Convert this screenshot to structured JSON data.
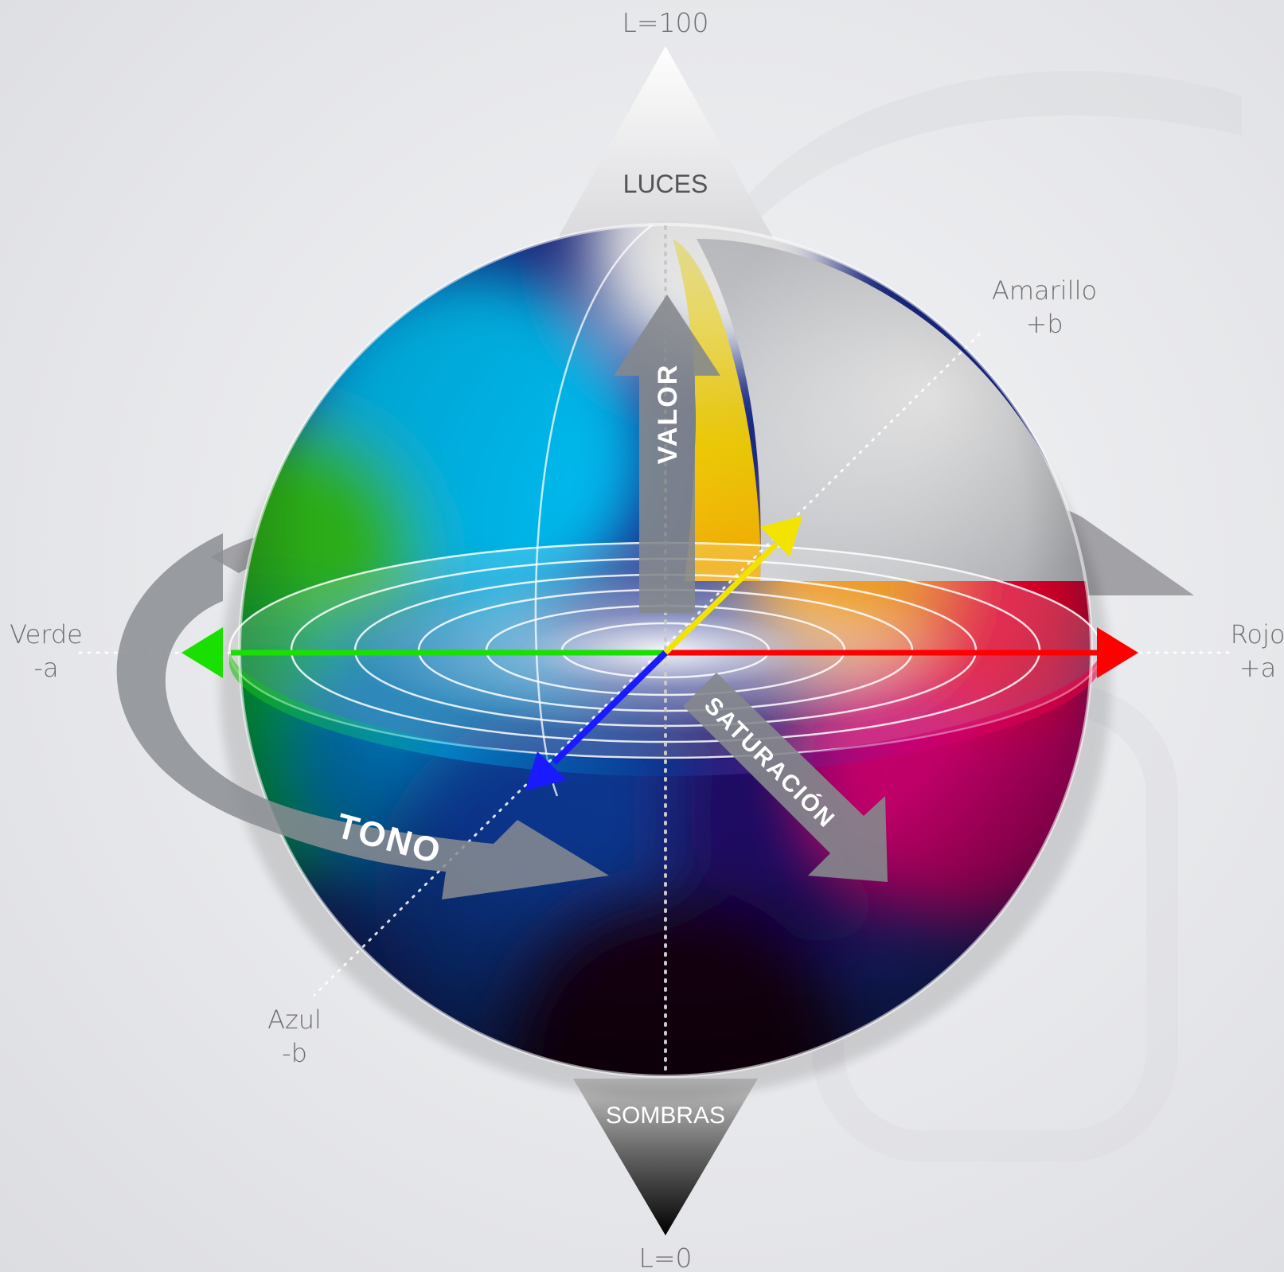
{
  "diagram": {
    "poles": {
      "top_value": "L=100",
      "top_label": "LUCES",
      "bottom_label": "SOMBRAS",
      "bottom_value": "L=0"
    },
    "axes": {
      "yellow": {
        "name": "Amarillo",
        "sign": "+b",
        "color": "#f2e400"
      },
      "blue": {
        "name": "Azul",
        "sign": "-b",
        "color": "#1a1aff"
      },
      "green": {
        "name": "Verde",
        "sign": "-a",
        "color": "#19e000"
      },
      "red": {
        "name": "Rojo",
        "sign": "+a",
        "color": "#ff0000"
      }
    },
    "arrows": {
      "value": "VALOR",
      "saturation": "SATURACIÓN",
      "hue": "TONO"
    }
  }
}
